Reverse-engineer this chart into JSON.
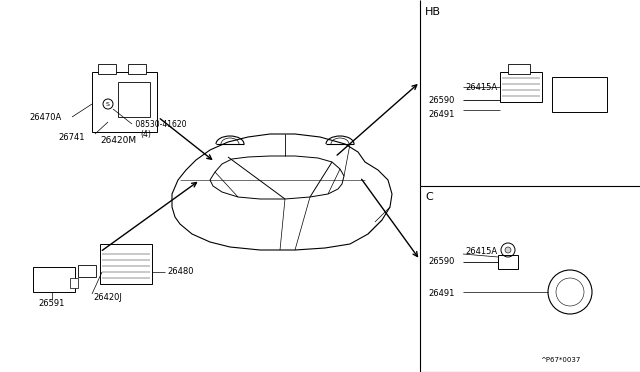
{
  "background_color": "#ffffff",
  "text_color": "#000000",
  "diagram_ref": "^P67*0037",
  "hb_label": "HB",
  "c_label": "C",
  "parts_26420M": "26420M",
  "parts_26470A": "26470A",
  "parts_26741": "26741",
  "parts_08530": " 08530-41620",
  "parts_4": "（4）",
  "parts_26420J": "26420J",
  "parts_26480": "26480",
  "parts_26591": "26591",
  "parts_26590_hb": "26590",
  "parts_26415A_hb": "26415A",
  "parts_26491_hb": "26491",
  "parts_26590_c": "26590",
  "parts_26415A_c": "26415A",
  "parts_26491_c": "26491"
}
